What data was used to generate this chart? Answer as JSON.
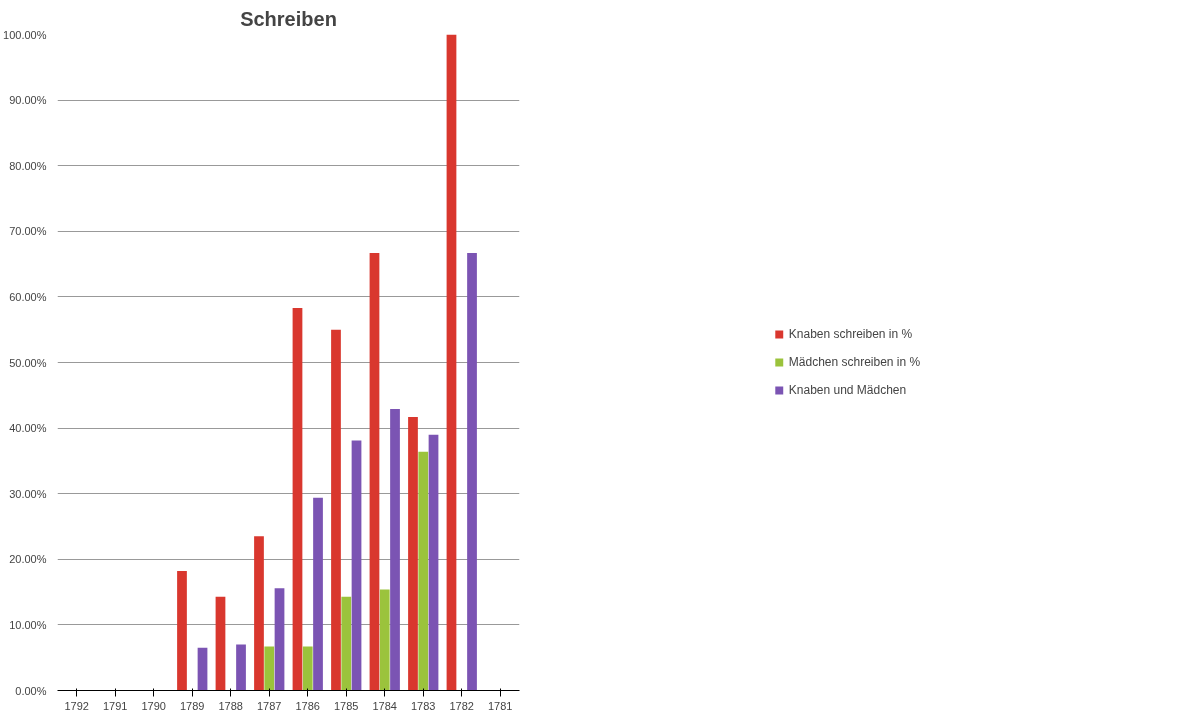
{
  "chart_data": {
    "type": "bar",
    "title": "Schreiben",
    "categories": [
      "1792",
      "1791",
      "1790",
      "1789",
      "1788",
      "1787",
      "1786",
      "1785",
      "1784",
      "1783",
      "1782",
      "1781"
    ],
    "series": [
      {
        "name": "Knaben schreiben in %",
        "color": "#d9372e",
        "values": [
          0,
          0,
          0,
          18.2,
          14.3,
          23.5,
          58.3,
          55.0,
          66.7,
          41.7,
          100,
          0
        ]
      },
      {
        "name": "Mädchen schreiben in %",
        "color": "#9bc33c",
        "values": [
          0,
          0,
          0,
          0,
          0,
          6.7,
          6.7,
          14.3,
          15.4,
          36.4,
          0,
          0
        ]
      },
      {
        "name": "Knaben und Mädchen",
        "color": "#7b54b3",
        "values": [
          0,
          0,
          0,
          6.5,
          7.0,
          15.6,
          29.4,
          38.1,
          42.9,
          39.0,
          66.7,
          0
        ]
      }
    ],
    "ylim": [
      0,
      100
    ],
    "yticks": [
      {
        "value": 0,
        "label": "0.00%"
      },
      {
        "value": 10,
        "label": "10.00%"
      },
      {
        "value": 20,
        "label": "20.00%"
      },
      {
        "value": 30,
        "label": "30.00%"
      },
      {
        "value": 40,
        "label": "40.00%"
      },
      {
        "value": 50,
        "label": "50.00%"
      },
      {
        "value": 60,
        "label": "60.00%"
      },
      {
        "value": 70,
        "label": "70.00%"
      },
      {
        "value": 80,
        "label": "80.00%"
      },
      {
        "value": 90,
        "label": "90.00%"
      },
      {
        "value": 100,
        "label": "100.00%"
      }
    ],
    "grid": "y",
    "legend": "right"
  }
}
